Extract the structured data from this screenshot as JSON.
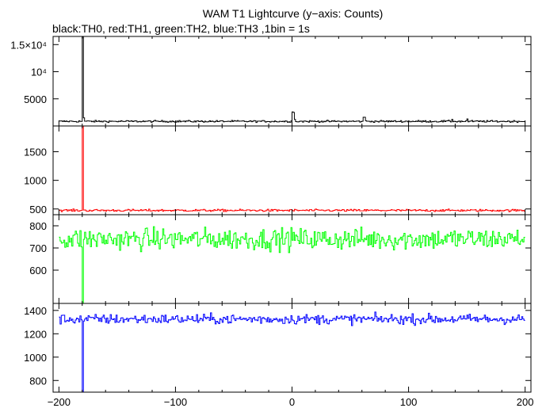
{
  "chart_data": {
    "type": "line",
    "title": "WAM T1 Lightcurve (y−axis: Counts)",
    "subtitle": "black:TH0, red:TH1, green:TH2, blue:TH3 ,1bin = 1s",
    "x": {
      "range": [
        -205,
        205
      ],
      "ticks": [
        -200,
        -100,
        0,
        100,
        200
      ],
      "tick_labels": [
        "−200",
        "−100",
        "0",
        "100",
        "200"
      ],
      "label": ""
    },
    "grid": false,
    "bin_seconds": 1,
    "data_start": -200,
    "data_end": 199,
    "panels": [
      {
        "name": "TH0",
        "color": "#000000",
        "ylim": [
          0,
          16500
        ],
        "ticks": [
          5000,
          10000,
          15000
        ],
        "tick_labels": [
          "5000",
          "10⁴",
          "1.5×10⁴"
        ],
        "baseline": 850,
        "noise": 120,
        "features": [
          {
            "x": -180,
            "y": 16400
          },
          {
            "x": -179,
            "y": 1500
          },
          {
            "x": 0,
            "y": 2600
          },
          {
            "x": 1,
            "y": 2500
          },
          {
            "x": 2,
            "y": 1200
          },
          {
            "x": 61,
            "y": 1600
          },
          {
            "x": 62,
            "y": 1600
          },
          {
            "x": 137,
            "y": 1200
          },
          {
            "x": 150,
            "y": 1300
          }
        ]
      },
      {
        "name": "TH1",
        "color": "#ff0000",
        "ylim": [
          400,
          1950
        ],
        "ticks": [
          500,
          1000,
          1500
        ],
        "tick_labels": [
          "500",
          "1000",
          "1500"
        ],
        "baseline": 475,
        "noise": 14,
        "features": [
          {
            "x": -180,
            "y": 1950
          }
        ]
      },
      {
        "name": "TH2",
        "color": "#00ff00",
        "ylim": [
          450,
          850
        ],
        "ticks": [
          600,
          700,
          800
        ],
        "tick_labels": [
          "600",
          "700",
          "800"
        ],
        "baseline": 740,
        "noise": 35,
        "features": [
          {
            "x": -180,
            "y": 450
          }
        ]
      },
      {
        "name": "TH3",
        "color": "#0000ff",
        "ylim": [
          700,
          1460
        ],
        "ticks": [
          800,
          1000,
          1200,
          1400
        ],
        "tick_labels": [
          "800",
          "1000",
          "1200",
          "1400"
        ],
        "baseline": 1325,
        "noise": 30,
        "features": [
          {
            "x": -180,
            "y": 700
          }
        ]
      }
    ]
  }
}
